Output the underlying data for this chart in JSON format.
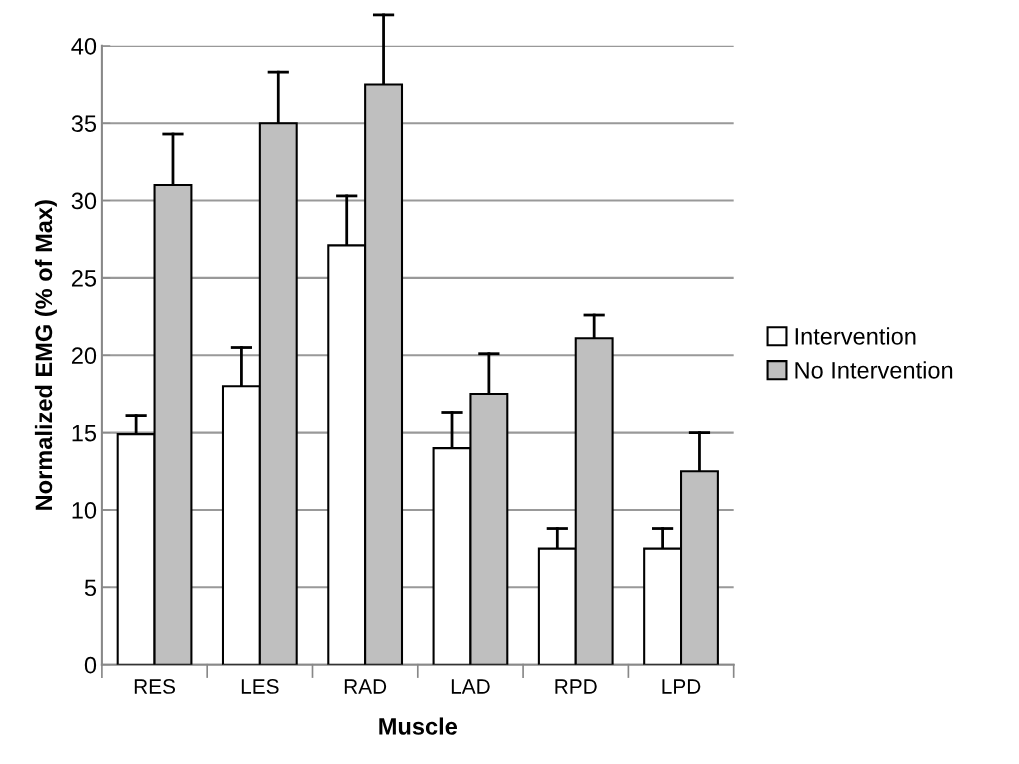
{
  "chart_data": {
    "type": "bar",
    "xlabel": "Muscle",
    "ylabel": "Normalized EMG (% of Max)",
    "categories": [
      "RES",
      "LES",
      "RAD",
      "LAD",
      "RPD",
      "LPD"
    ],
    "series": [
      {
        "name": "Intervention",
        "color": "#ffffff",
        "values": [
          14.9,
          18,
          27.1,
          14,
          7.5,
          7.5
        ],
        "errors": [
          [
            14.9,
            16.1
          ],
          [
            18,
            20.5
          ],
          [
            27.1,
            30.3
          ],
          [
            14,
            16.3
          ],
          [
            7.5,
            8.8
          ],
          [
            7.5,
            8.8
          ]
        ]
      },
      {
        "name": "No Intervention",
        "color": "#bfbfbf",
        "values": [
          31,
          35,
          37.5,
          17.5,
          21.1,
          12.5
        ],
        "errors": [
          [
            31,
            34.3
          ],
          [
            35,
            38.3
          ],
          [
            37.5,
            42
          ],
          [
            17.5,
            20.1
          ],
          [
            21.1,
            22.6
          ],
          [
            12.5,
            15
          ]
        ]
      }
    ],
    "ylim": [
      0,
      40
    ],
    "yticks": [
      0,
      5,
      10,
      15,
      20,
      25,
      30,
      35,
      40
    ],
    "grid": "y",
    "legend": "right"
  }
}
